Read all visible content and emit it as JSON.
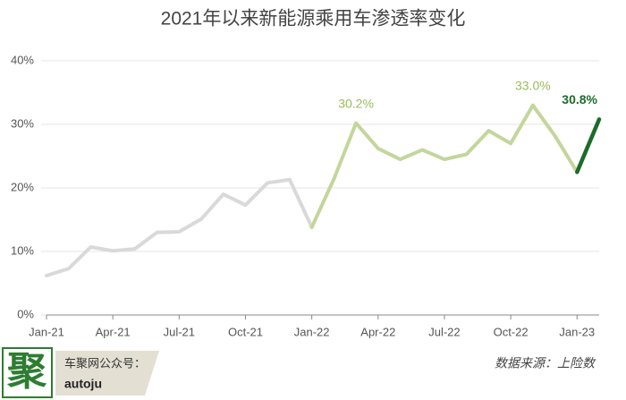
{
  "chart_data": {
    "type": "line",
    "title": "2021年以来新能源乘用车渗透率变化",
    "categories": [
      "Jan-21",
      null,
      null,
      "Apr-21",
      null,
      null,
      "Jul-21",
      null,
      null,
      "Oct-21",
      null,
      null,
      "Jan-22",
      null,
      null,
      "Apr-22",
      null,
      null,
      "Jul-22",
      null,
      null,
      "Oct-22",
      null,
      null,
      "Jan-23",
      null
    ],
    "series": [
      {
        "color": "#d9d9d9",
        "values": [
          6.2,
          7.3,
          10.7,
          10.1,
          10.4,
          13.0,
          13.1,
          15.1,
          19.0,
          17.3,
          20.8,
          21.3,
          13.8,
          null,
          null,
          null,
          null,
          null,
          null,
          null,
          null,
          null,
          null,
          null,
          null,
          null
        ]
      },
      {
        "color": "#c3d69b",
        "values": [
          null,
          null,
          null,
          null,
          null,
          null,
          null,
          null,
          null,
          null,
          null,
          null,
          13.8,
          21.4,
          30.2,
          26.2,
          24.5,
          26.0,
          24.5,
          25.3,
          29.0,
          27.0,
          33.0,
          28.2,
          22.5,
          null
        ],
        "value_labels": [
          null,
          null,
          null,
          null,
          null,
          null,
          null,
          null,
          null,
          null,
          null,
          null,
          null,
          null,
          "30.2%",
          null,
          null,
          null,
          null,
          null,
          null,
          null,
          "33.0%",
          null,
          null,
          null
        ]
      },
      {
        "color": "#1e6b2a",
        "values": [
          null,
          null,
          null,
          null,
          null,
          null,
          null,
          null,
          null,
          null,
          null,
          null,
          null,
          null,
          null,
          null,
          null,
          null,
          null,
          null,
          null,
          null,
          null,
          null,
          22.5,
          30.8
        ],
        "value_labels": [
          null,
          null,
          null,
          null,
          null,
          null,
          null,
          null,
          null,
          null,
          null,
          null,
          null,
          null,
          null,
          null,
          null,
          null,
          null,
          null,
          null,
          null,
          null,
          null,
          null,
          "30.8%"
        ]
      }
    ],
    "ylim": [
      0,
      40
    ],
    "yticks": [
      {
        "value": 0,
        "label": "0%"
      },
      {
        "value": 10,
        "label": "10%"
      },
      {
        "value": 20,
        "label": "20%"
      },
      {
        "value": 30,
        "label": "30%"
      },
      {
        "value": 40,
        "label": "40%"
      }
    ],
    "grid": true
  },
  "footer": {
    "logo": "聚",
    "account": "车聚网公众号：",
    "handle": "autoju",
    "source": "数据来源：上险数"
  }
}
